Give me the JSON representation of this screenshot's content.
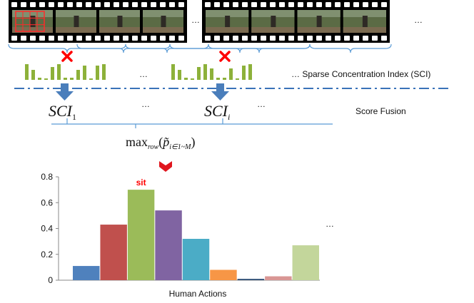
{
  "diagram": {
    "ellipsis": "…",
    "sci_label": "… Sparse Concentration Index (SCI)",
    "score_fusion_label": "Score Fusion",
    "sci_symbol": "SCI",
    "sci_first_subscript": "1",
    "sci_i_subscript": "i",
    "max_label": "max",
    "max_subscript": "row",
    "max_paren_open": "(",
    "max_p": "p̃",
    "max_p_subscript": "i∈1~M",
    "max_paren_close": ")",
    "colors": {
      "frame_border": "#000000",
      "brace": "#5b9bd5",
      "sci_bar": "#8db13a",
      "cross": "#ff0000",
      "down_arrow": "#4a7ebb",
      "chevron": "#e0161e",
      "dash_line": "#3a72b8"
    }
  },
  "chart_data": {
    "type": "bar",
    "xlabel": "Human Actions",
    "ylabel": "",
    "ylim": [
      0,
      0.8
    ],
    "yticks": [
      "0",
      "0.2",
      "0.4",
      "0.6",
      "0.8"
    ],
    "annotation": "sit",
    "trailing_ellipsis": "…",
    "values": [
      0.11,
      0.43,
      0.7,
      0.54,
      0.32,
      0.08,
      0.01,
      0.03,
      0.27
    ],
    "colors": [
      "#4f81bd",
      "#c0504d",
      "#9bbb59",
      "#8064a2",
      "#4bacc6",
      "#f79646",
      "#2c4d75",
      "#d99694",
      "#c3d69b"
    ]
  }
}
